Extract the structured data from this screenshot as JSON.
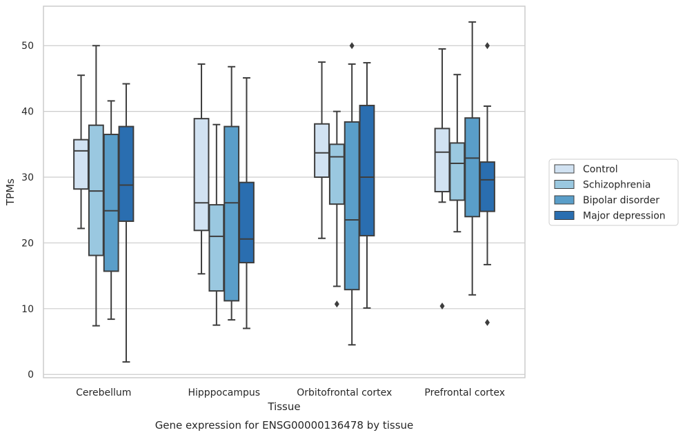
{
  "chart_data": {
    "type": "boxplot",
    "title": "Gene expression for ENSG00000136478 by tissue",
    "xlabel": "Tissue",
    "ylabel": "TPMs",
    "ylim": [
      -0.5,
      56
    ],
    "yticks": [
      0,
      10,
      20,
      30,
      40,
      50
    ],
    "grid": "horizontal",
    "legend_position": "right, outside",
    "categories": [
      "Cerebellum",
      "Hipppocampus",
      "Orbitofrontal cortex",
      "Prefrontal cortex"
    ],
    "series": [
      {
        "name": "Control",
        "color": "#d1e2f2",
        "boxes": [
          {
            "whislo": 22.2,
            "q1": 28.2,
            "med": 34.0,
            "q3": 35.7,
            "whishi": 45.5,
            "fliers": []
          },
          {
            "whislo": 15.3,
            "q1": 21.9,
            "med": 26.1,
            "q3": 38.9,
            "whishi": 47.2,
            "fliers": []
          },
          {
            "whislo": 20.7,
            "q1": 30.0,
            "med": 33.7,
            "q3": 38.1,
            "whishi": 47.5,
            "fliers": []
          },
          {
            "whislo": 26.2,
            "q1": 27.8,
            "med": 33.8,
            "q3": 37.4,
            "whishi": 49.5,
            "fliers": [
              10.4
            ]
          }
        ]
      },
      {
        "name": "Schizophrenia",
        "color": "#9ac8e0",
        "boxes": [
          {
            "whislo": 7.4,
            "q1": 18.1,
            "med": 27.9,
            "q3": 37.9,
            "whishi": 50.0,
            "fliers": []
          },
          {
            "whislo": 7.5,
            "q1": 12.7,
            "med": 21.0,
            "q3": 25.8,
            "whishi": 38.0,
            "fliers": []
          },
          {
            "whislo": 13.4,
            "q1": 25.9,
            "med": 33.1,
            "q3": 35.0,
            "whishi": 40.0,
            "fliers": [
              10.7
            ]
          },
          {
            "whislo": 21.7,
            "q1": 26.5,
            "med": 32.1,
            "q3": 35.2,
            "whishi": 45.6,
            "fliers": []
          }
        ]
      },
      {
        "name": "Bipolar disorder",
        "color": "#5a9ec9",
        "boxes": [
          {
            "whislo": 8.4,
            "q1": 15.7,
            "med": 24.9,
            "q3": 36.5,
            "whishi": 41.6,
            "fliers": []
          },
          {
            "whislo": 8.3,
            "q1": 11.2,
            "med": 26.1,
            "q3": 37.7,
            "whishi": 46.8,
            "fliers": []
          },
          {
            "whislo": 4.5,
            "q1": 12.9,
            "med": 23.5,
            "q3": 38.4,
            "whishi": 47.2,
            "fliers": [
              50.0
            ]
          },
          {
            "whislo": 12.1,
            "q1": 24.0,
            "med": 32.9,
            "q3": 39.0,
            "whishi": 53.6,
            "fliers": []
          }
        ]
      },
      {
        "name": "Major depression",
        "color": "#2a6eb0",
        "boxes": [
          {
            "whislo": 1.9,
            "q1": 23.3,
            "med": 28.8,
            "q3": 37.7,
            "whishi": 44.2,
            "fliers": []
          },
          {
            "whislo": 7.0,
            "q1": 17.0,
            "med": 20.6,
            "q3": 29.2,
            "whishi": 45.1,
            "fliers": []
          },
          {
            "whislo": 10.1,
            "q1": 21.1,
            "med": 30.0,
            "q3": 40.9,
            "whishi": 47.4,
            "fliers": []
          },
          {
            "whislo": 16.7,
            "q1": 24.8,
            "med": 29.6,
            "q3": 32.3,
            "whishi": 40.8,
            "fliers": [
              7.9,
              50.0
            ]
          }
        ]
      }
    ]
  }
}
